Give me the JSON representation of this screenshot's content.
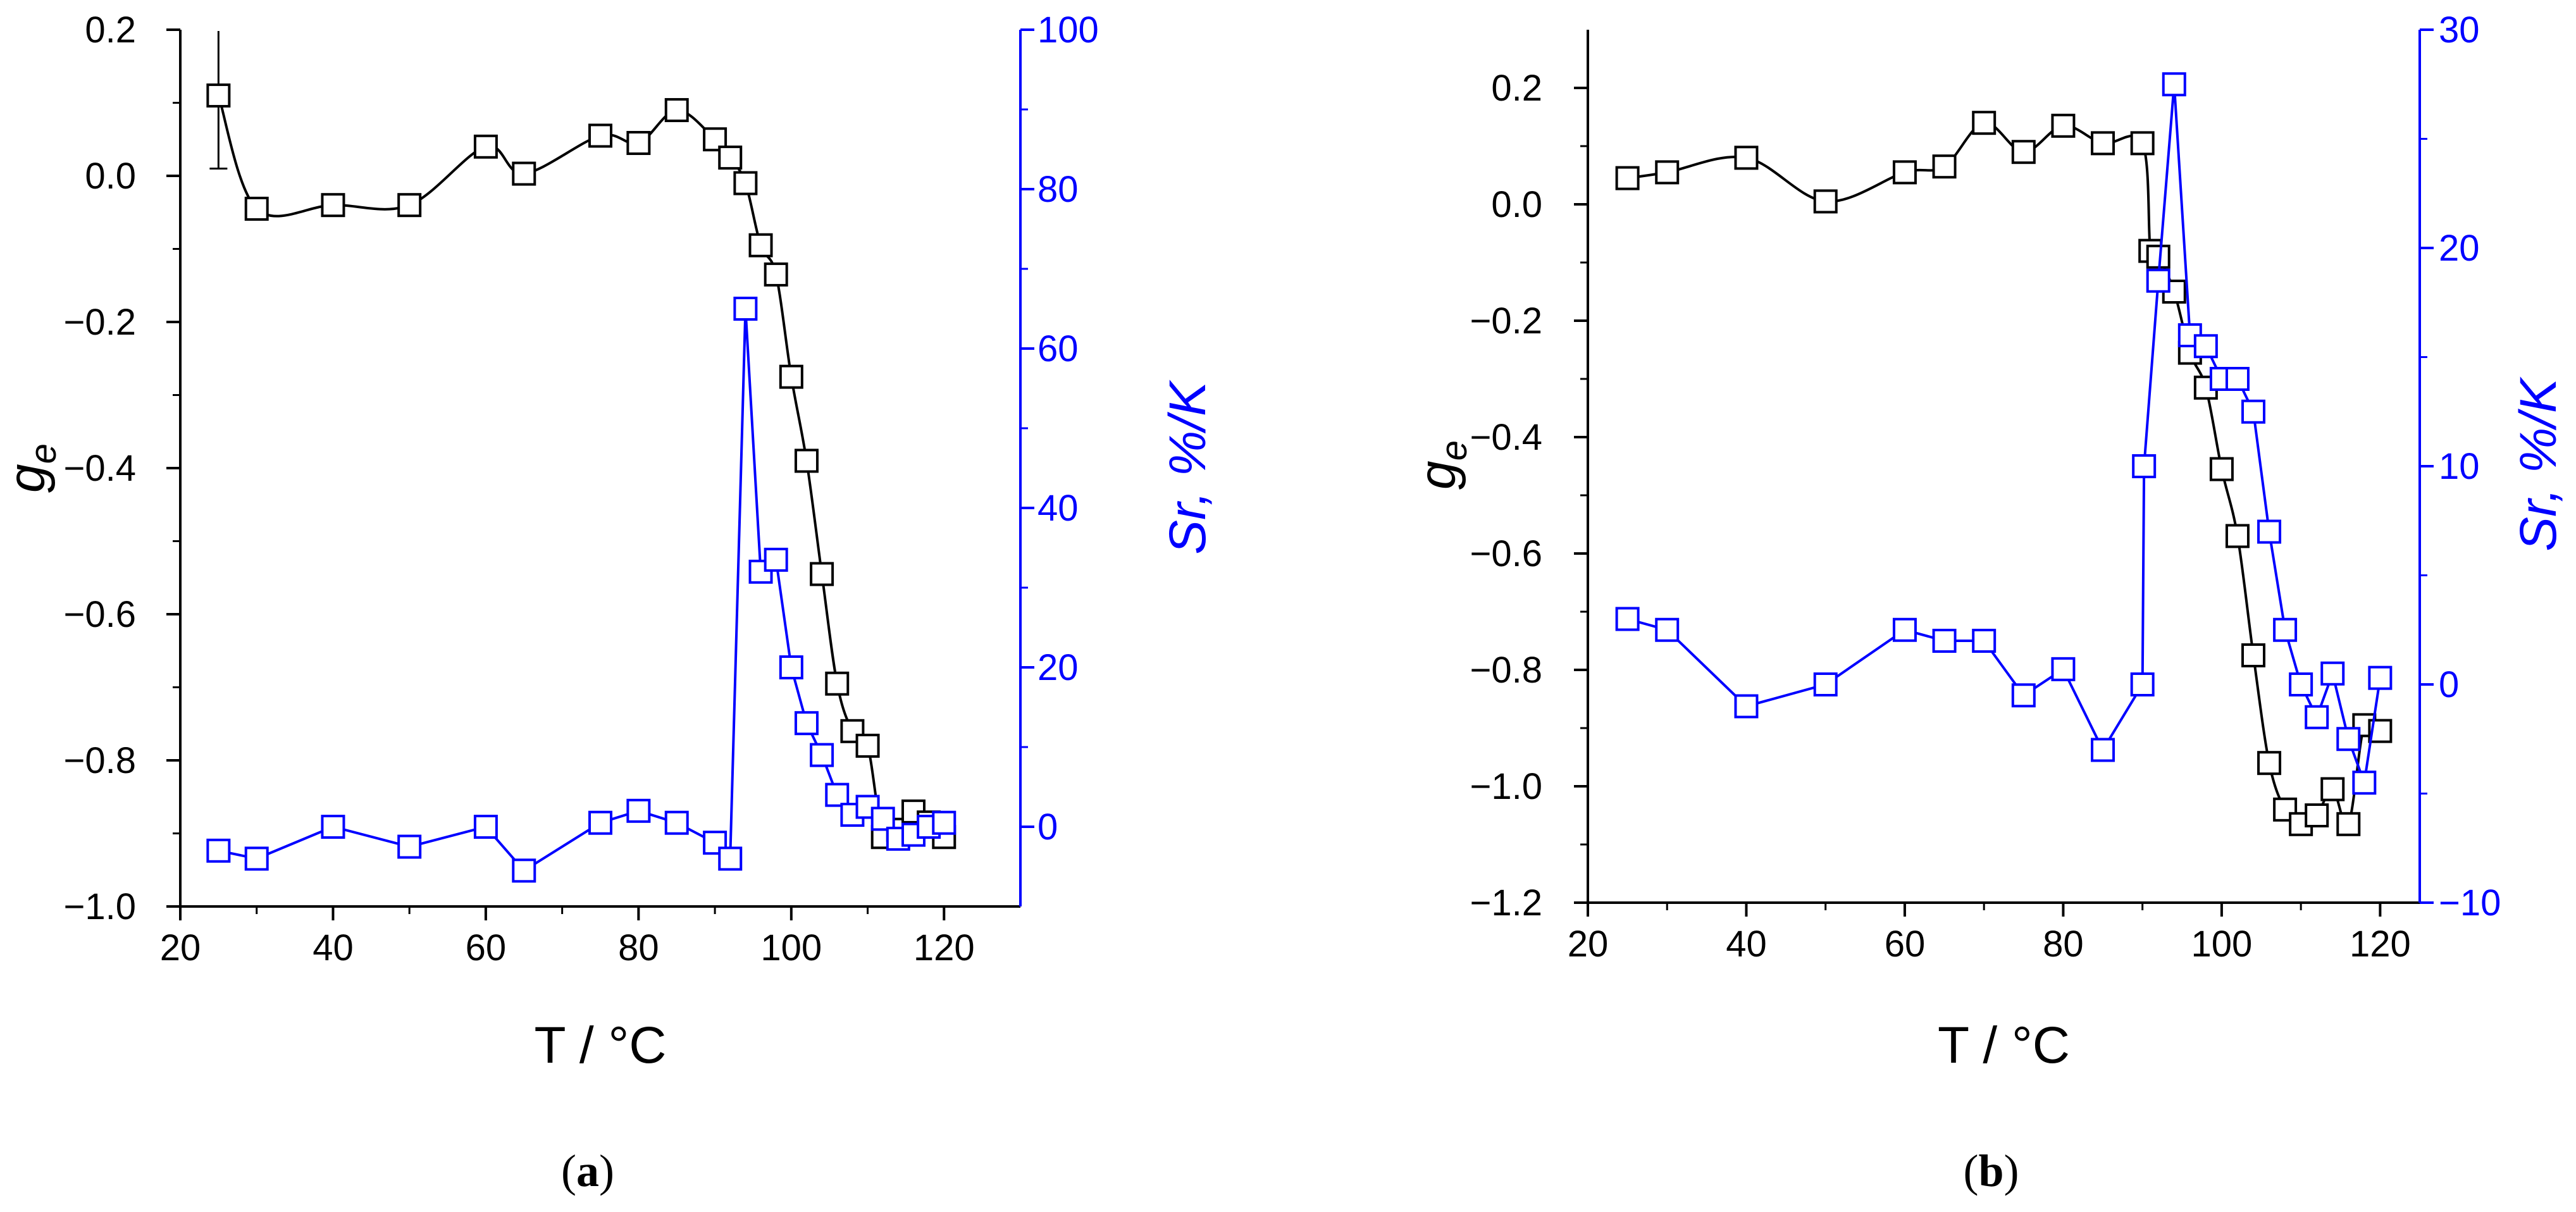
{
  "chart_data": [
    {
      "type": "scatter",
      "panel": "(a)",
      "panel_letter": "a",
      "xlabel": "T / °C",
      "ylabel_left": "g",
      "ylabel_left_sub": "e",
      "ylabel_right": "Sr, %/K",
      "xlim": [
        20,
        130
      ],
      "ylim_left": [
        -1.0,
        0.2
      ],
      "ylim_right": [
        -10,
        100
      ],
      "x_ticks": [
        20,
        40,
        60,
        80,
        100,
        120
      ],
      "x_tick_labels": [
        "20",
        "40",
        "60",
        "80",
        "100",
        "120"
      ],
      "y_left_ticks": [
        0.2,
        0.0,
        -0.2,
        -0.4,
        -0.6,
        -0.8,
        -1.0
      ],
      "y_left_tick_labels": [
        "0.2",
        "0.0",
        "−0.2",
        "−0.4",
        "−0.6",
        "−0.8",
        "−1.0"
      ],
      "y_right_ticks": [
        100,
        80,
        60,
        40,
        20,
        0
      ],
      "y_right_tick_labels": [
        "100",
        "80",
        "60",
        "40",
        "20",
        "0"
      ],
      "colors": {
        "ge": "#000000",
        "sr": "#0000ff"
      },
      "series": [
        {
          "name": "g_e",
          "axis": "left",
          "line": "smooth",
          "x": [
            25,
            30,
            40,
            50,
            60,
            65,
            75,
            80,
            85,
            90,
            92,
            94,
            96,
            98,
            100,
            102,
            104,
            106,
            108,
            110,
            112,
            114,
            116,
            118,
            120
          ],
          "y": [
            0.11,
            -0.045,
            -0.04,
            -0.04,
            0.04,
            0.003,
            0.055,
            0.045,
            0.09,
            0.05,
            0.025,
            -0.01,
            -0.095,
            -0.135,
            -0.275,
            -0.39,
            -0.545,
            -0.695,
            -0.76,
            -0.78,
            -0.905,
            -0.895,
            -0.87,
            -0.885,
            -0.905
          ],
          "error_bar": {
            "x": 25,
            "low": 0.01,
            "high": 0.21
          }
        },
        {
          "name": "Sr",
          "axis": "right",
          "line": "polyline",
          "x": [
            25,
            30,
            40,
            50,
            60,
            65,
            75,
            80,
            85,
            90,
            92,
            94,
            96,
            98,
            100,
            102,
            104,
            106,
            108,
            110,
            112,
            114,
            116,
            118,
            120
          ],
          "y": [
            -3,
            -4,
            0,
            -2.5,
            0,
            -5.5,
            0.5,
            2,
            0.5,
            -2,
            -4,
            65,
            32,
            33.5,
            20,
            13,
            9,
            4,
            1.5,
            2.5,
            1,
            -1.5,
            -1,
            0,
            0.5
          ]
        }
      ]
    },
    {
      "type": "scatter",
      "panel": "(b)",
      "panel_letter": "b",
      "xlabel": "T / °C",
      "ylabel_left": "g",
      "ylabel_left_sub": "e",
      "ylabel_right": "Sr, %/K",
      "xlim": [
        20,
        125
      ],
      "ylim_left": [
        -1.2,
        0.3
      ],
      "ylim_right": [
        -10,
        30
      ],
      "x_ticks": [
        20,
        40,
        60,
        80,
        100,
        120
      ],
      "x_tick_labels": [
        "20",
        "40",
        "60",
        "80",
        "100",
        "120"
      ],
      "y_left_ticks": [
        0.2,
        0.0,
        -0.2,
        -0.4,
        -0.6,
        -0.8,
        -1.0,
        -1.2
      ],
      "y_left_tick_labels": [
        "0.2",
        "0.0",
        "−0.2",
        "−0.4",
        "−0.6",
        "−0.8",
        "−1.0",
        "−1.2"
      ],
      "y_right_ticks": [
        30,
        20,
        10,
        0,
        -10
      ],
      "y_right_tick_labels": [
        "30",
        "20",
        "10",
        "0",
        "−10"
      ],
      "colors": {
        "ge": "#000000",
        "sr": "#0000ff"
      },
      "series": [
        {
          "name": "g_e",
          "axis": "left",
          "line": "smooth",
          "x": [
            25,
            30,
            40,
            50,
            60,
            65,
            70,
            75,
            80,
            85,
            90,
            91,
            92,
            94,
            96,
            98,
            100,
            102,
            104,
            106,
            108,
            110,
            112,
            114,
            116,
            118,
            120
          ],
          "y": [
            0.045,
            0.055,
            0.08,
            0.005,
            0.055,
            0.065,
            0.14,
            0.09,
            0.135,
            0.105,
            0.105,
            -0.08,
            -0.09,
            -0.15,
            -0.255,
            -0.315,
            -0.455,
            -0.57,
            -0.775,
            -0.96,
            -1.04,
            -1.065,
            -1.05,
            -1.005,
            -1.065,
            -0.895,
            -0.905
          ]
        },
        {
          "name": "Sr",
          "axis": "right",
          "line": "polyline",
          "x": [
            25,
            30,
            40,
            50,
            60,
            65,
            70,
            75,
            80,
            85,
            90,
            90.2,
            92,
            94,
            96,
            98,
            100,
            102,
            104,
            106,
            108,
            110,
            112,
            114,
            116,
            118,
            120
          ],
          "y": [
            3,
            2.5,
            -1,
            0,
            2.5,
            2,
            2,
            -0.5,
            0.7,
            -3,
            0,
            10,
            18.5,
            27.5,
            16,
            15.5,
            14,
            14,
            12.5,
            7,
            2.5,
            0,
            -1.5,
            0.5,
            -2.5,
            -4.5,
            0.3
          ]
        }
      ]
    }
  ]
}
